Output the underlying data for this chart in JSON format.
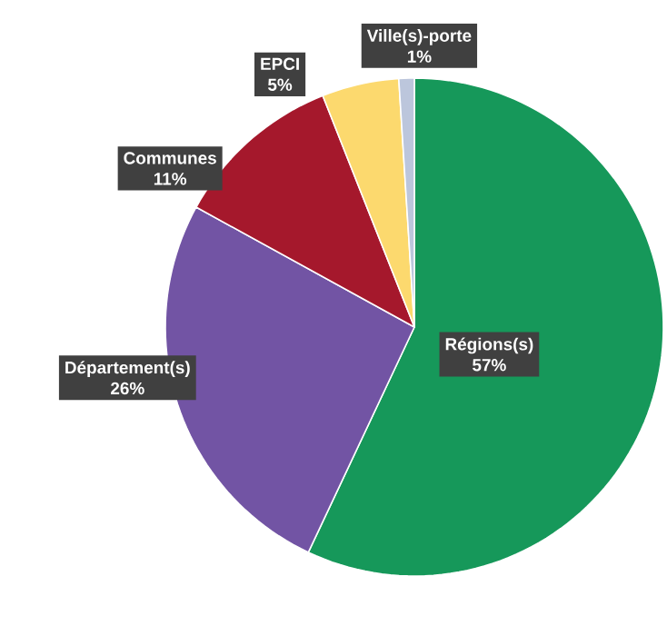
{
  "chart_data": {
    "type": "pie",
    "categories": [
      "Régions(s)",
      "Département(s)",
      "Communes",
      "EPCI",
      "Ville(s)-porte"
    ],
    "values": [
      57,
      26,
      11,
      5,
      1
    ],
    "colors": [
      "#16985a",
      "#7254a4",
      "#a5182c",
      "#fcd96e",
      "#bcc6dc"
    ],
    "value_labels": [
      "57%",
      "26%",
      "11%",
      "5%",
      "1%"
    ]
  }
}
